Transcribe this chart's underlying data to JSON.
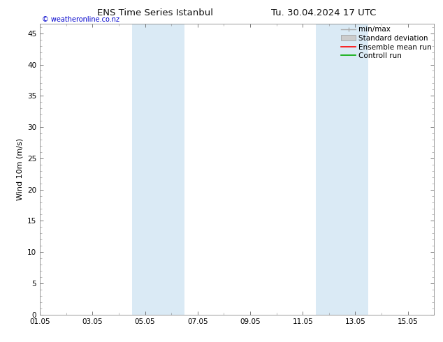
{
  "title_left": "ENS Time Series Istanbul",
  "title_right": "Tu. 30.04.2024 17 UTC",
  "ylabel": "Wind 10m (m/s)",
  "ylim": [
    0,
    46.5
  ],
  "yticks": [
    0,
    5,
    10,
    15,
    20,
    25,
    30,
    35,
    40,
    45
  ],
  "xlim_start": 0,
  "xlim_end": 15,
  "xtick_labels": [
    "01.05",
    "03.05",
    "05.05",
    "07.05",
    "09.05",
    "11.05",
    "13.05",
    "15.05"
  ],
  "xtick_positions": [
    0,
    2,
    4,
    6,
    8,
    10,
    12,
    14
  ],
  "shade_bands": [
    {
      "xmin": 3.5,
      "xmax": 5.5
    },
    {
      "xmin": 10.5,
      "xmax": 12.5
    }
  ],
  "shade_color": "#daeaf5",
  "bg_color": "#ffffff",
  "plot_bg_color": "#ffffff",
  "copyright_text": "© weatheronline.co.nz",
  "copyright_color": "#0000cc",
  "title_fontsize": 9.5,
  "axis_label_fontsize": 8,
  "tick_fontsize": 7.5,
  "grid_color": "#dddddd",
  "spine_color": "#aaaaaa",
  "legend_fontsize": 7.5,
  "minmax_color": "#aaaaaa",
  "stddev_color": "#cccccc",
  "ensemble_color": "#ff0000",
  "control_color": "#00aa00"
}
